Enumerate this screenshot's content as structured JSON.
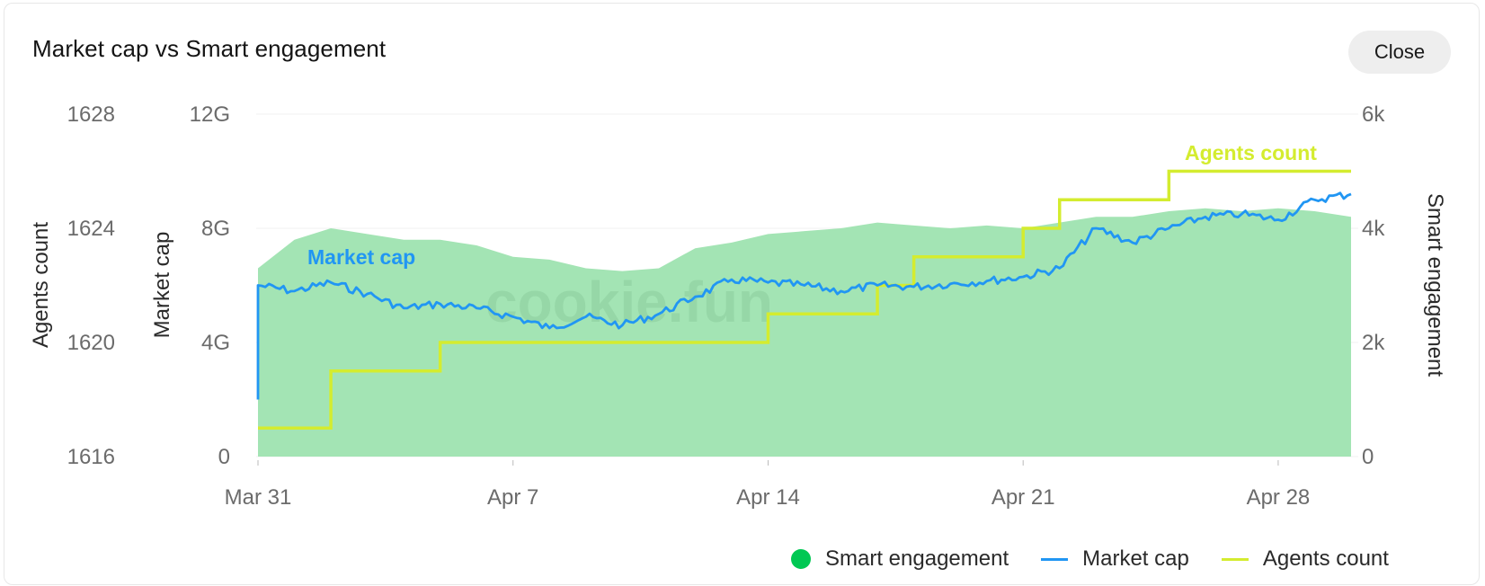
{
  "title": "Market cap vs Smart engagement",
  "close_label": "Close",
  "watermark": "cookie.fun",
  "legend": {
    "smart_engagement": "Smart engagement",
    "market_cap": "Market cap",
    "agents_count": "Agents count"
  },
  "colors": {
    "smart_engagement": "#00c853",
    "smart_engagement_fill": "#a3e4b4",
    "market_cap": "#2196f3",
    "agents_count": "#d4ec2f"
  },
  "chart_data": {
    "type": "line",
    "x_axis": {
      "ticks": [
        "Mar 31",
        "Apr 7",
        "Apr 14",
        "Apr 21",
        "Apr 28"
      ],
      "range": [
        "Mar 31",
        "Apr 30"
      ]
    },
    "y_axes": {
      "agents_count": {
        "label": "Agents count",
        "ticks": [
          "1616",
          "1620",
          "1624",
          "1628"
        ],
        "range": [
          1616,
          1628
        ]
      },
      "market_cap": {
        "label": "Market cap",
        "ticks": [
          "0",
          "4G",
          "8G",
          "12G"
        ],
        "range": [
          0,
          12000000000
        ]
      },
      "smart_engagement": {
        "label": "Smart engagement",
        "ticks": [
          "0",
          "2k",
          "4k",
          "6k"
        ],
        "range": [
          0,
          6000
        ]
      }
    },
    "grid": true,
    "series": [
      {
        "name": "Smart engagement",
        "axis": "smart_engagement",
        "type": "area",
        "x": [
          "Mar 31",
          "Apr 1",
          "Apr 2",
          "Apr 3",
          "Apr 4",
          "Apr 5",
          "Apr 6",
          "Apr 7",
          "Apr 8",
          "Apr 9",
          "Apr 10",
          "Apr 11",
          "Apr 12",
          "Apr 13",
          "Apr 14",
          "Apr 15",
          "Apr 16",
          "Apr 17",
          "Apr 18",
          "Apr 19",
          "Apr 20",
          "Apr 21",
          "Apr 22",
          "Apr 23",
          "Apr 24",
          "Apr 25",
          "Apr 26",
          "Apr 27",
          "Apr 28",
          "Apr 29",
          "Apr 30"
        ],
        "values": [
          3300,
          3800,
          4000,
          3900,
          3800,
          3800,
          3700,
          3500,
          3450,
          3300,
          3250,
          3300,
          3650,
          3750,
          3900,
          3950,
          4000,
          4100,
          4050,
          4000,
          4050,
          4000,
          4100,
          4200,
          4200,
          4300,
          4350,
          4300,
          4350,
          4300,
          4200
        ]
      },
      {
        "name": "Market cap",
        "axis": "market_cap",
        "type": "line",
        "x": [
          "Mar 31",
          "Mar 31",
          "Apr 1",
          "Apr 2",
          "Apr 3",
          "Apr 4",
          "Apr 5",
          "Apr 6",
          "Apr 7",
          "Apr 8",
          "Apr 9",
          "Apr 10",
          "Apr 11",
          "Apr 12",
          "Apr 13",
          "Apr 14",
          "Apr 15",
          "Apr 16",
          "Apr 17",
          "Apr 18",
          "Apr 19",
          "Apr 20",
          "Apr 21",
          "Apr 22",
          "Apr 23",
          "Apr 24",
          "Apr 25",
          "Apr 26",
          "Apr 27",
          "Apr 28",
          "Apr 29",
          "Apr 30"
        ],
        "values": [
          2000000000,
          6000000000,
          5800000000,
          6100000000,
          5700000000,
          5200000000,
          5350000000,
          5200000000,
          4900000000,
          4500000000,
          4900000000,
          4600000000,
          5000000000,
          5600000000,
          6200000000,
          6100000000,
          6000000000,
          5800000000,
          6000000000,
          5950000000,
          6050000000,
          6150000000,
          6300000000,
          6600000000,
          8000000000,
          7500000000,
          8000000000,
          8400000000,
          8500000000,
          8300000000,
          9000000000,
          9200000000
        ]
      },
      {
        "name": "Agents count",
        "axis": "agents_count",
        "type": "step",
        "x": [
          "Mar 31",
          "Apr 2",
          "Apr 5",
          "Apr 14",
          "Apr 17",
          "Apr 18",
          "Apr 21",
          "Apr 22",
          "Apr 25",
          "Apr 30"
        ],
        "values": [
          1617,
          1619,
          1620,
          1621,
          1622,
          1623,
          1624,
          1625,
          1626,
          1626
        ]
      }
    ],
    "annotations": [
      "Market cap",
      "Agents count"
    ]
  }
}
